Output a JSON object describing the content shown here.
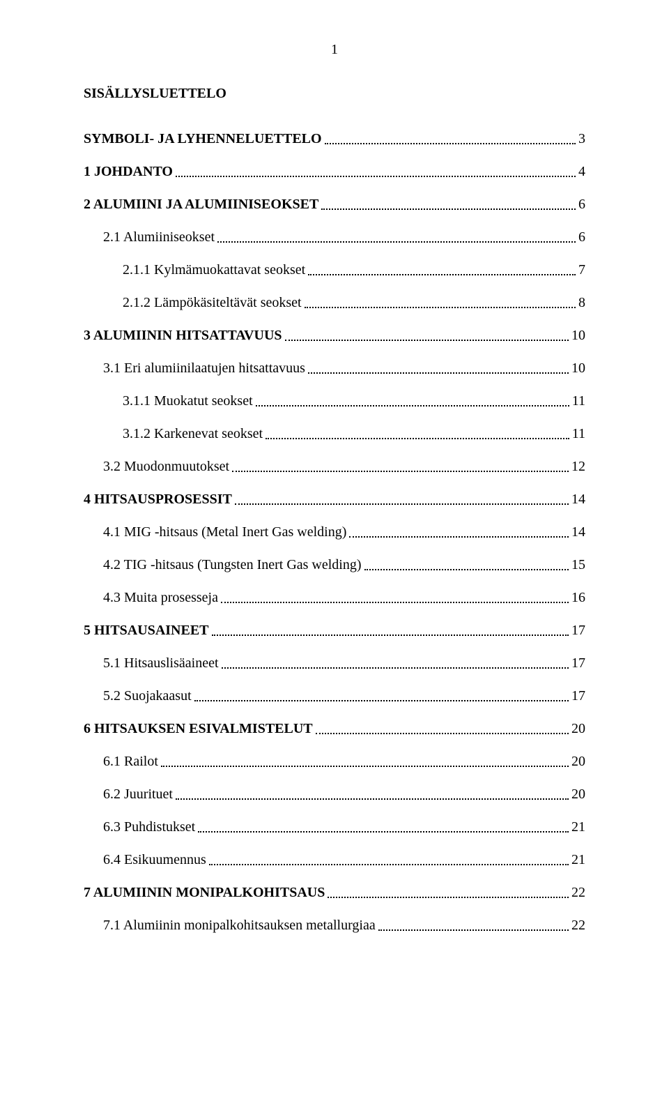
{
  "page_number": "1",
  "title": "SISÄLLYSLUETTELO",
  "toc": [
    {
      "label": "SYMBOLI- JA LYHENNELUETTELO",
      "page": "3",
      "bold": true,
      "indent": 0,
      "gap": true
    },
    {
      "label": "1 JOHDANTO",
      "page": "4",
      "bold": true,
      "indent": 0,
      "gap": true
    },
    {
      "label": "2 ALUMIINI JA ALUMIINISEOKSET",
      "page": "6",
      "bold": true,
      "indent": 0,
      "gap": true
    },
    {
      "label": "2.1 Alumiiniseokset",
      "page": "6",
      "bold": false,
      "indent": 1,
      "gap": true
    },
    {
      "label": "2.1.1 Kylmämuokattavat seokset",
      "page": "7",
      "bold": false,
      "indent": 2,
      "gap": true
    },
    {
      "label": "2.1.2 Lämpökäsiteltävät seokset",
      "page": "8",
      "bold": false,
      "indent": 2,
      "gap": true
    },
    {
      "label": "3 ALUMIININ HITSATTAVUUS",
      "page": "10",
      "bold": true,
      "indent": 0,
      "gap": true
    },
    {
      "label": "3.1 Eri alumiinilaatujen hitsattavuus",
      "page": "10",
      "bold": false,
      "indent": 1,
      "gap": true
    },
    {
      "label": "3.1.1 Muokatut seokset",
      "page": "11",
      "bold": false,
      "indent": 2,
      "gap": true
    },
    {
      "label": "3.1.2 Karkenevat seokset",
      "page": "11",
      "bold": false,
      "indent": 2,
      "gap": true
    },
    {
      "label": "3.2 Muodonmuutokset",
      "page": "12",
      "bold": false,
      "indent": 1,
      "gap": true
    },
    {
      "label": "4 HITSAUSPROSESSIT",
      "page": "14",
      "bold": true,
      "indent": 0,
      "gap": true
    },
    {
      "label": "4.1 MIG -hitsaus (Metal Inert Gas welding)",
      "page": "14",
      "bold": false,
      "indent": 1,
      "gap": true
    },
    {
      "label": "4.2 TIG -hitsaus (Tungsten Inert Gas welding)",
      "page": "15",
      "bold": false,
      "indent": 1,
      "gap": true
    },
    {
      "label": "4.3 Muita prosesseja",
      "page": "16",
      "bold": false,
      "indent": 1,
      "gap": true
    },
    {
      "label": "5 HITSAUSAINEET",
      "page": "17",
      "bold": true,
      "indent": 0,
      "gap": true
    },
    {
      "label": "5.1 Hitsauslisäaineet",
      "page": "17",
      "bold": false,
      "indent": 1,
      "gap": true
    },
    {
      "label": "5.2 Suojakaasut",
      "page": "17",
      "bold": false,
      "indent": 1,
      "gap": true
    },
    {
      "label": "6 HITSAUKSEN ESIVALMISTELUT",
      "page": "20",
      "bold": true,
      "indent": 0,
      "gap": true
    },
    {
      "label": "6.1 Railot",
      "page": "20",
      "bold": false,
      "indent": 1,
      "gap": true
    },
    {
      "label": "6.2 Juurituet",
      "page": "20",
      "bold": false,
      "indent": 1,
      "gap": true
    },
    {
      "label": "6.3 Puhdistukset",
      "page": "21",
      "bold": false,
      "indent": 1,
      "gap": true
    },
    {
      "label": "6.4 Esikuumennus",
      "page": "21",
      "bold": false,
      "indent": 1,
      "gap": true
    },
    {
      "label": "7 ALUMIININ MONIPALKOHITSAUS",
      "page": "22",
      "bold": true,
      "indent": 0,
      "gap": true
    },
    {
      "label": "7.1 Alumiinin monipalkohitsauksen metallurgiaa",
      "page": "22",
      "bold": false,
      "indent": 1,
      "gap": true
    }
  ]
}
